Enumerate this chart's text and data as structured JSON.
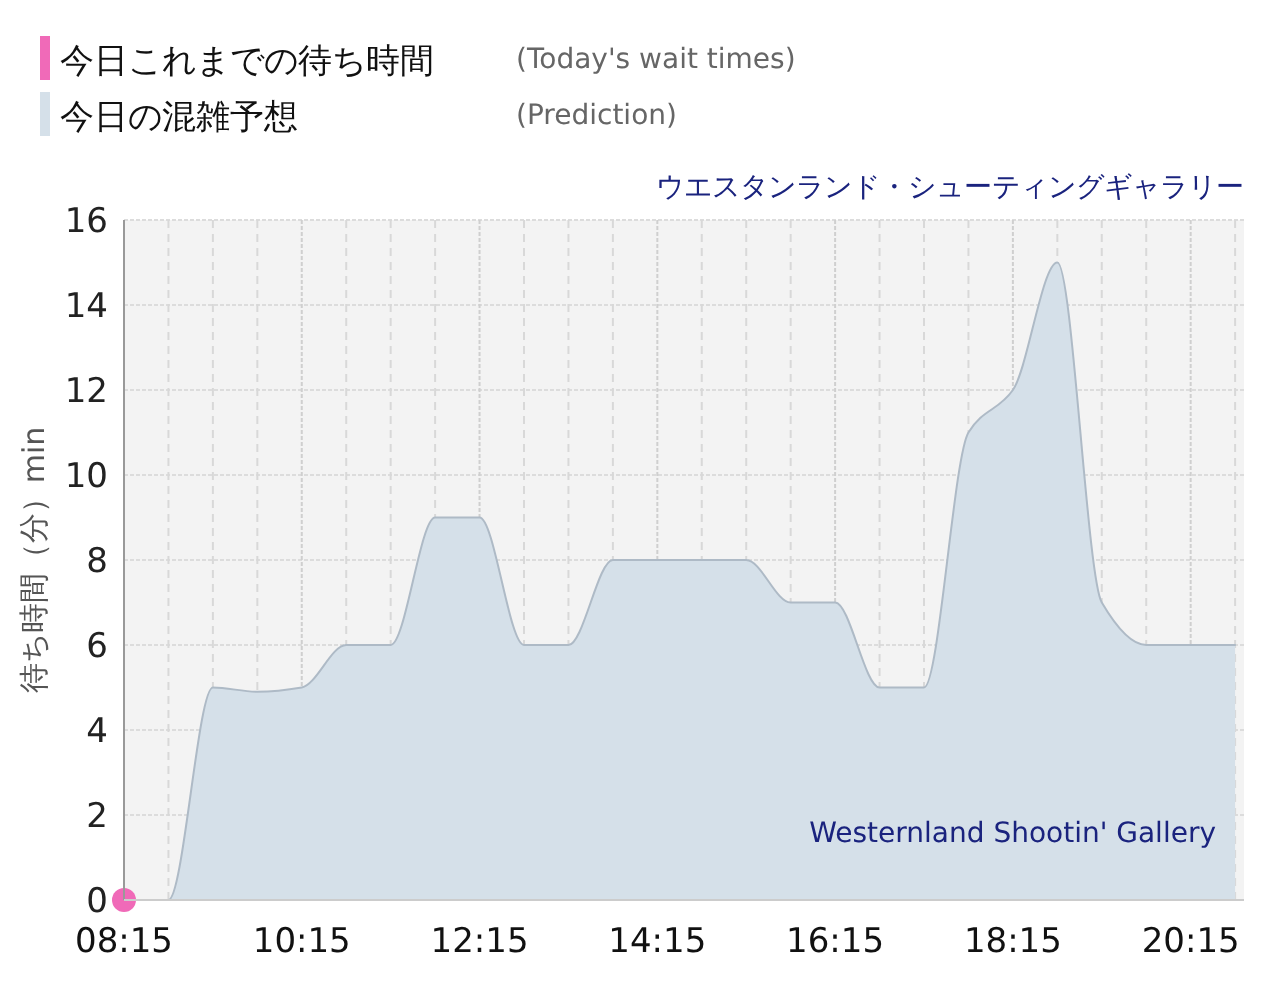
{
  "chart_data": {
    "type": "area",
    "title": "ウエスタンランド・シューティングギャラリー",
    "ylabel": "待ち時間（分）min",
    "annotations": [
      "(Today's wait times)",
      "(Prediction)",
      "Westernland Shootin' Gallery"
    ],
    "series": [
      {
        "name": "今日これまでの待ち時間",
        "type": "scatter",
        "color": "#f06ab8",
        "x": [
          8.25
        ],
        "values": [
          0
        ]
      },
      {
        "name": "今日の混雑予想",
        "color": "#d5e0e9",
        "x": [
          8.25,
          8.75,
          9.25,
          9.75,
          10.25,
          10.75,
          11.25,
          11.75,
          12.25,
          12.75,
          13.25,
          13.75,
          14.25,
          14.75,
          15.25,
          15.75,
          16.25,
          16.75,
          17.25,
          17.75,
          18.25,
          18.75,
          19.25,
          19.75,
          20.25,
          20.75
        ],
        "values": [
          0,
          0,
          5,
          4.9,
          5,
          6,
          6,
          9,
          9,
          6,
          6,
          8,
          8,
          8,
          8,
          7,
          7,
          5,
          5,
          11,
          12,
          15,
          7,
          6,
          6,
          6
        ]
      }
    ],
    "xlim": [
      8.25,
      20.85
    ],
    "ylim": [
      0,
      16
    ],
    "xticks": [
      {
        "value": 8.25,
        "label": "08:15"
      },
      {
        "value": 8.75,
        "label": null
      },
      {
        "value": 9.25,
        "label": null
      },
      {
        "value": 9.75,
        "label": null
      },
      {
        "value": 10.25,
        "label": "10:15"
      },
      {
        "value": 10.75,
        "label": null
      },
      {
        "value": 11.25,
        "label": null
      },
      {
        "value": 11.75,
        "label": null
      },
      {
        "value": 12.25,
        "label": "12:15"
      },
      {
        "value": 12.75,
        "label": null
      },
      {
        "value": 13.25,
        "label": null
      },
      {
        "value": 13.75,
        "label": null
      },
      {
        "value": 14.25,
        "label": "14:15"
      },
      {
        "value": 14.75,
        "label": null
      },
      {
        "value": 15.25,
        "label": null
      },
      {
        "value": 15.75,
        "label": null
      },
      {
        "value": 16.25,
        "label": "16:15"
      },
      {
        "value": 16.75,
        "label": null
      },
      {
        "value": 17.25,
        "label": null
      },
      {
        "value": 17.75,
        "label": null
      },
      {
        "value": 18.25,
        "label": "18:15"
      },
      {
        "value": 18.75,
        "label": null
      },
      {
        "value": 19.25,
        "label": null
      },
      {
        "value": 19.75,
        "label": null
      },
      {
        "value": 20.25,
        "label": "20:15"
      },
      {
        "value": 20.75,
        "label": null
      }
    ],
    "yticks": [
      0,
      2,
      4,
      6,
      8,
      10,
      12,
      14,
      16
    ],
    "grid": true,
    "legend": "top left"
  }
}
